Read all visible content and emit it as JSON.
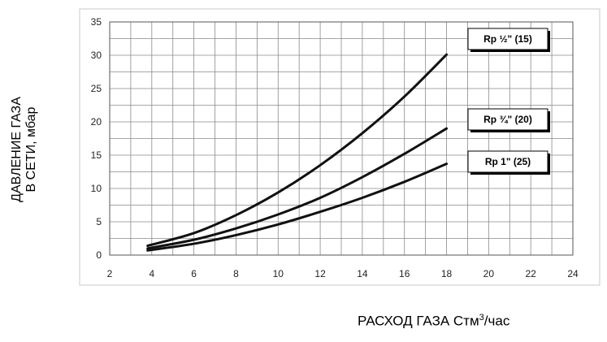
{
  "chart_data": {
    "type": "line",
    "title": "",
    "ylabel_lines": [
      "ДАВЛЕНИЕ ГАЗА",
      "В СЕТИ, мбар"
    ],
    "xlabel_main": "РАСХОД ГАЗА Стм",
    "xlabel_sup": "3",
    "xlabel_tail": "/час",
    "xlim": [
      2,
      24
    ],
    "ylim": [
      0,
      35
    ],
    "x_ticks": [
      2,
      4,
      6,
      8,
      10,
      12,
      14,
      16,
      18,
      20,
      22,
      24
    ],
    "y_ticks": [
      0,
      5,
      10,
      15,
      20,
      25,
      30,
      35
    ],
    "x_tick_labels": [
      "2",
      "4",
      "6",
      "8",
      "10",
      "12",
      "14",
      "16",
      "18",
      "20",
      "22",
      "24"
    ],
    "y_tick_labels": [
      "0",
      "5",
      "10",
      "15",
      "20",
      "25",
      "30",
      "35"
    ],
    "grid": {
      "x_minor_step": 1,
      "y_minor_step": 2.5
    },
    "series": [
      {
        "name": "Rp ½\" (15)",
        "x": [
          3.8,
          6,
          8,
          10,
          12,
          14,
          16,
          18
        ],
        "y": [
          1.4,
          3.3,
          6.0,
          9.4,
          13.5,
          18.3,
          23.8,
          30.1
        ]
      },
      {
        "name": "Rp ¾\" (20)",
        "x": [
          3.8,
          6,
          8,
          10,
          12,
          14,
          16,
          18
        ],
        "y": [
          1.0,
          2.3,
          4.0,
          6.1,
          8.6,
          11.7,
          15.2,
          19.0
        ]
      },
      {
        "name": "Rp 1\" (25)",
        "x": [
          3.8,
          6,
          8,
          10,
          12,
          14,
          16,
          18
        ],
        "y": [
          0.7,
          1.7,
          3.0,
          4.6,
          6.5,
          8.6,
          11.0,
          13.7
        ]
      }
    ],
    "line_color": "#111111",
    "grid_color": "#8a8a8a",
    "legend_placement": "right"
  }
}
